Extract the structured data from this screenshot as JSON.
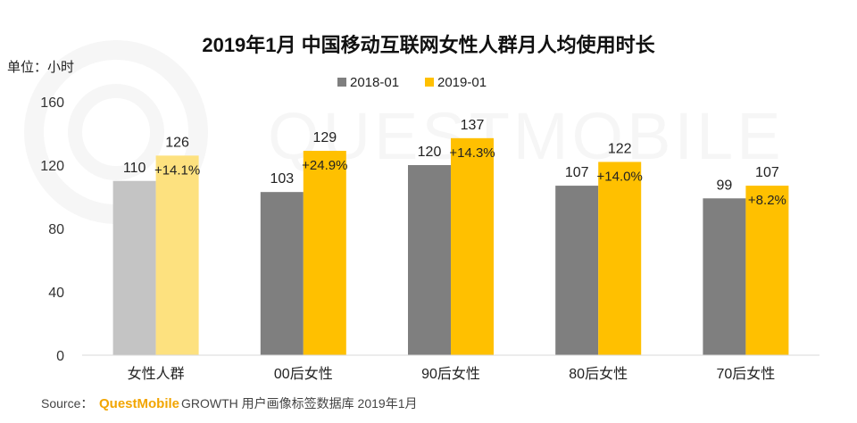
{
  "chart_data": {
    "type": "bar",
    "title": "2019年1月 中国移动互联网女性人群月人均使用时长",
    "ylabel": "单位：小时",
    "ylim": [
      0,
      160
    ],
    "yticks": [
      0,
      40,
      80,
      120,
      160
    ],
    "categories": [
      "女性人群",
      "00后女性",
      "90后女性",
      "80后女性",
      "70后女性"
    ],
    "series": [
      {
        "name": "2018-01",
        "values": [
          110,
          103,
          120,
          107,
          99
        ],
        "color": "#7f7f7f",
        "highlight_color": "#c4c4c4"
      },
      {
        "name": "2019-01",
        "values": [
          126,
          129,
          137,
          122,
          107
        ],
        "color": "#ffc000",
        "highlight_color": "#fde17f"
      }
    ],
    "growth_labels": [
      "+14.1%",
      "+24.9%",
      "+14.3%",
      "+14.0%",
      "+8.2%"
    ],
    "legend_position": "top-center",
    "grid": false
  },
  "source": {
    "prefix": "Source：",
    "brand": "QuestMobile",
    "text": "GROWTH 用户画像标签数据库 2019年1月"
  },
  "watermark": "QUESTMOBILE"
}
